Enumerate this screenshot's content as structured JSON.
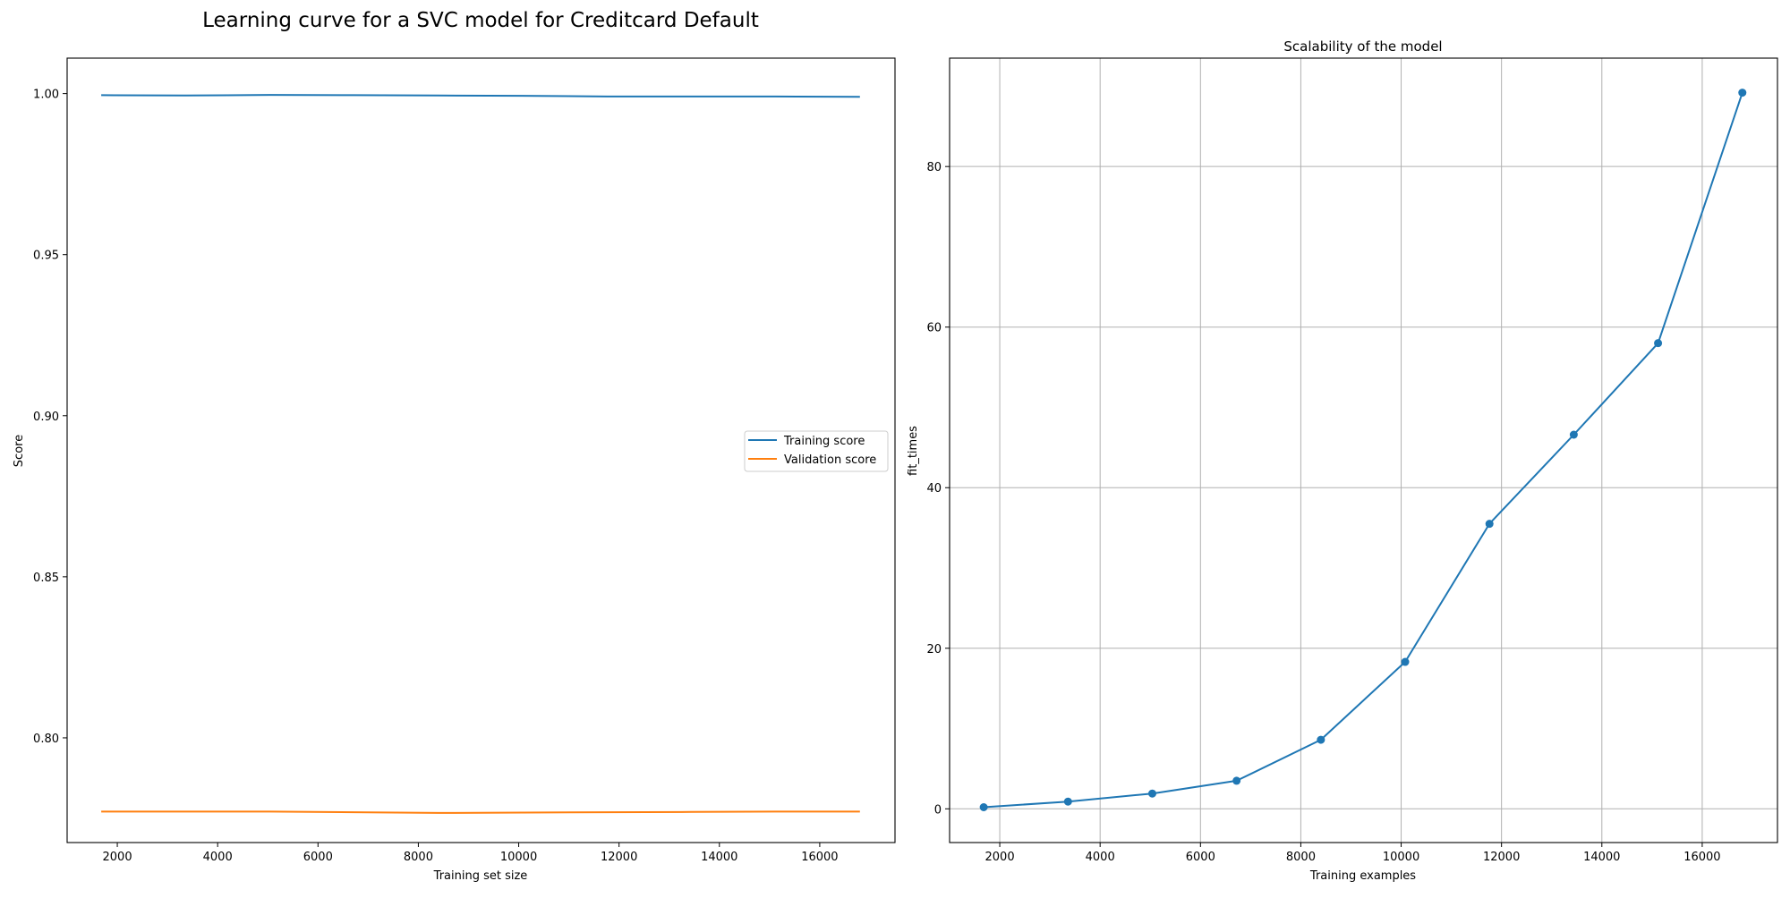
{
  "figure": {
    "suptitle": "Learning curve for a SVC model for Creditcard Default"
  },
  "chart_data": [
    {
      "type": "line",
      "title": "",
      "xlabel": "Training set size",
      "ylabel": "Score",
      "xlim": [
        1000,
        17500
      ],
      "ylim": [
        0.7675,
        1.011
      ],
      "xticks": [
        2000,
        4000,
        6000,
        8000,
        10000,
        12000,
        14000,
        16000
      ],
      "xtick_labels": [
        "2000",
        "4000",
        "6000",
        "8000",
        "10000",
        "12000",
        "14000",
        "16000"
      ],
      "yticks": [
        0.8,
        0.85,
        0.9,
        0.95,
        1.0
      ],
      "ytick_labels": [
        "0.80",
        "0.85",
        "0.90",
        "0.95",
        "1.00"
      ],
      "grid": false,
      "legend": "center-right",
      "x": [
        1680,
        3360,
        5040,
        6720,
        8400,
        10080,
        11760,
        13440,
        15120,
        16800
      ],
      "series": [
        {
          "name": "Training score",
          "color": "#1f77b4",
          "values": [
            0.9995,
            0.9994,
            0.9996,
            0.9995,
            0.9994,
            0.9993,
            0.9991,
            0.9991,
            0.9991,
            0.999
          ]
        },
        {
          "name": "Validation score",
          "color": "#ff7f0e",
          "values": [
            0.7771,
            0.7771,
            0.7771,
            0.7769,
            0.7767,
            0.7768,
            0.7769,
            0.777,
            0.7771,
            0.7771
          ]
        }
      ]
    },
    {
      "type": "line",
      "title": "Scalability of the model",
      "xlabel": "Training examples",
      "ylabel": "fit_times",
      "xlim": [
        1000,
        17500
      ],
      "ylim": [
        -4.2,
        93.5
      ],
      "xticks": [
        2000,
        4000,
        6000,
        8000,
        10000,
        12000,
        14000,
        16000
      ],
      "xtick_labels": [
        "2000",
        "4000",
        "6000",
        "8000",
        "10000",
        "12000",
        "14000",
        "16000"
      ],
      "yticks": [
        0,
        20,
        40,
        60,
        80
      ],
      "ytick_labels": [
        "0",
        "20",
        "40",
        "60",
        "80"
      ],
      "grid": true,
      "markers": true,
      "x": [
        1680,
        3360,
        5040,
        6720,
        8400,
        10080,
        11760,
        13440,
        15120,
        16800
      ],
      "series": [
        {
          "color": "#1f77b4",
          "values": [
            0.2,
            0.9,
            1.9,
            3.5,
            8.6,
            18.3,
            35.5,
            46.6,
            58.0,
            89.2
          ]
        }
      ]
    }
  ]
}
